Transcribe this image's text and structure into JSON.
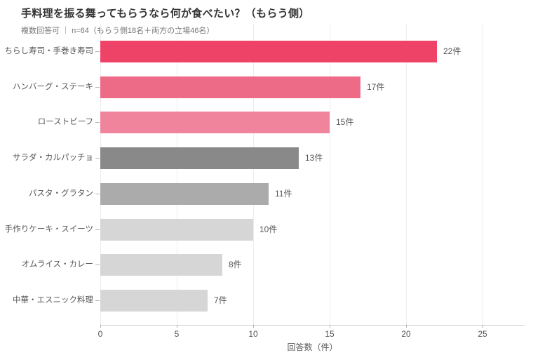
{
  "chart_data": {
    "type": "bar",
    "orientation": "horizontal",
    "title": "手料理を振る舞ってもらうなら何が食べたい？（もらう側）",
    "subtitle": "複数回答可 ｜ n=64（もらう側18名＋両方の立場46名）",
    "categories": [
      "ちらし寿司・手巻き寿司",
      "ハンバーグ・ステーキ",
      "ローストビーフ",
      "サラダ・カルパッチョ",
      "パスタ・グラタン",
      "手作りケーキ・スイーツ",
      "オムライス・カレー",
      "中華・エスニック料理"
    ],
    "values": [
      22,
      17,
      15,
      13,
      11,
      10,
      8,
      7
    ],
    "value_labels": [
      "22件",
      "17件",
      "15件",
      "13件",
      "11件",
      "10件",
      "8件",
      "7件"
    ],
    "bar_colors": [
      "#ee4266",
      "#ee6b87",
      "#f0849c",
      "#898989",
      "#ababab",
      "#d6d6d6",
      "#d6d6d6",
      "#d6d6d6"
    ],
    "xlabel": "回答数（件）",
    "xticks": [
      0,
      5,
      10,
      15,
      20,
      25
    ],
    "xlim": [
      0,
      27.7
    ],
    "grid": true,
    "legend": "none",
    "unit": "件"
  },
  "colors": {
    "accent_red": "#ee4266",
    "grid": "#ececec",
    "axis": "#cccccc",
    "title_text": "#333333",
    "subtitle_text": "#757575",
    "label_text": "#555555",
    "background": "#ffffff"
  }
}
